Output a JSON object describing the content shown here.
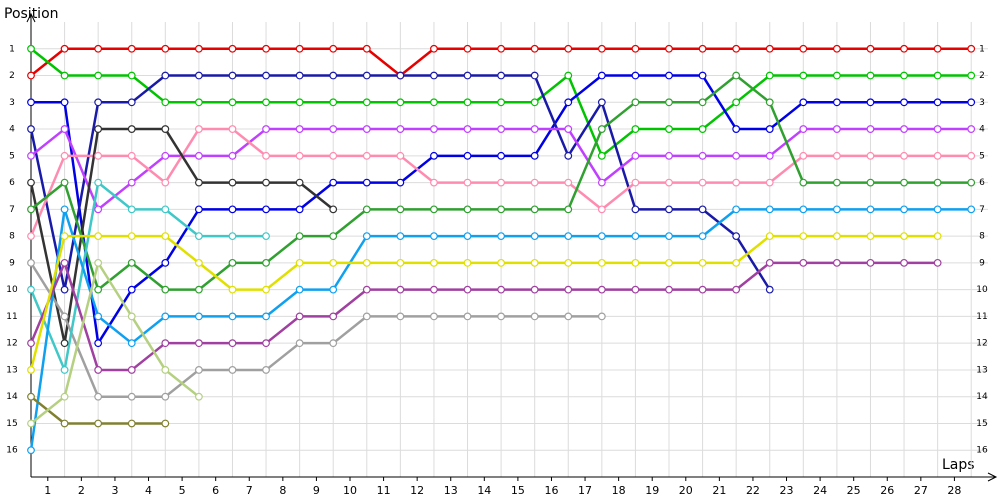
{
  "chart_data": {
    "type": "line",
    "y_label": "Position",
    "x_label": "Laps",
    "x": [
      0,
      1,
      2,
      3,
      4,
      5,
      6,
      7,
      8,
      9,
      10,
      11,
      12,
      13,
      14,
      15,
      16,
      17,
      18,
      19,
      20,
      21,
      22,
      23,
      24,
      25,
      26,
      27,
      28
    ],
    "xlim": [
      0,
      28.5
    ],
    "xticks": [
      {
        "value": 0.5,
        "label": "1"
      },
      {
        "value": 1.5,
        "label": "2"
      },
      {
        "value": 2.5,
        "label": "3"
      },
      {
        "value": 3.5,
        "label": "4"
      },
      {
        "value": 4.5,
        "label": "5"
      },
      {
        "value": 5.5,
        "label": "6"
      },
      {
        "value": 6.5,
        "label": "7"
      },
      {
        "value": 7.5,
        "label": "8"
      },
      {
        "value": 8.5,
        "label": "9"
      },
      {
        "value": 9.5,
        "label": "10"
      },
      {
        "value": 10.5,
        "label": "11"
      },
      {
        "value": 11.5,
        "label": "12"
      },
      {
        "value": 12.5,
        "label": "13"
      },
      {
        "value": 13.5,
        "label": "14"
      },
      {
        "value": 14.5,
        "label": "15"
      },
      {
        "value": 15.5,
        "label": "16"
      },
      {
        "value": 16.5,
        "label": "17"
      },
      {
        "value": 17.5,
        "label": "18"
      },
      {
        "value": 18.5,
        "label": "19"
      },
      {
        "value": 19.5,
        "label": "20"
      },
      {
        "value": 20.5,
        "label": "21"
      },
      {
        "value": 21.5,
        "label": "22"
      },
      {
        "value": 22.5,
        "label": "23"
      },
      {
        "value": 23.5,
        "label": "24"
      },
      {
        "value": 24.5,
        "label": "25"
      },
      {
        "value": 25.5,
        "label": "26"
      },
      {
        "value": 26.5,
        "label": "27"
      },
      {
        "value": 27.5,
        "label": "28"
      }
    ],
    "ylim": [
      17,
      0
    ],
    "yticks": [
      1,
      2,
      3,
      4,
      5,
      6,
      7,
      8,
      9,
      10,
      11,
      12,
      13,
      14,
      15,
      16
    ],
    "grid": true,
    "series": [
      {
        "color": "#e60000",
        "values": [
          2,
          1,
          1,
          1,
          1,
          1,
          1,
          1,
          1,
          1,
          1,
          2,
          1,
          1,
          1,
          1,
          1,
          1,
          1,
          1,
          1,
          1,
          1,
          1,
          1,
          1,
          1,
          1,
          1
        ]
      },
      {
        "color": "#00c400",
        "values": [
          1,
          2,
          2,
          2,
          3,
          3,
          3,
          3,
          3,
          3,
          3,
          3,
          3,
          3,
          3,
          3,
          2,
          5,
          4,
          4,
          4,
          3,
          2,
          2,
          2,
          2,
          2,
          2,
          2
        ]
      },
      {
        "color": "#0000e6",
        "values": [
          3,
          3,
          12,
          10,
          9,
          7,
          7,
          7,
          7,
          6,
          6,
          6,
          5,
          5,
          5,
          5,
          3,
          2,
          2,
          2,
          2,
          4,
          4,
          3,
          3,
          3,
          3,
          3,
          3
        ]
      },
      {
        "color": "#1a1aa8",
        "values": [
          4,
          10,
          3,
          3,
          2,
          2,
          2,
          2,
          2,
          2,
          2,
          2,
          2,
          2,
          2,
          2,
          5,
          3,
          7,
          7,
          7,
          8,
          10,
          null,
          null,
          null,
          null,
          null,
          null
        ]
      },
      {
        "color": "#c040ff",
        "values": [
          5,
          4,
          7,
          6,
          5,
          5,
          5,
          4,
          4,
          4,
          4,
          4,
          4,
          4,
          4,
          4,
          4,
          6,
          5,
          5,
          5,
          5,
          5,
          4,
          4,
          4,
          4,
          4,
          4
        ]
      },
      {
        "color": "#ff8cb0",
        "values": [
          8,
          5,
          5,
          5,
          6,
          4,
          4,
          5,
          5,
          5,
          5,
          5,
          6,
          6,
          6,
          6,
          6,
          7,
          6,
          6,
          6,
          6,
          6,
          5,
          5,
          5,
          5,
          5,
          5
        ]
      },
      {
        "color": "#333333",
        "values": [
          6,
          12,
          4,
          4,
          4,
          6,
          6,
          6,
          6,
          7,
          null,
          null,
          null,
          null,
          null,
          null,
          null,
          null,
          null,
          null,
          null,
          null,
          null,
          null,
          null,
          null,
          null,
          null,
          null
        ]
      },
      {
        "color": "#30a030",
        "values": [
          7,
          6,
          10,
          9,
          10,
          10,
          9,
          9,
          8,
          8,
          7,
          7,
          7,
          7,
          7,
          7,
          7,
          4,
          3,
          3,
          3,
          2,
          3,
          6,
          6,
          6,
          6,
          6,
          6
        ]
      },
      {
        "color": "#a0a0a0",
        "values": [
          9,
          11,
          14,
          14,
          14,
          13,
          13,
          13,
          12,
          12,
          11,
          11,
          11,
          11,
          11,
          11,
          11,
          11,
          null,
          null,
          null,
          null,
          null,
          null,
          null,
          null,
          null,
          null,
          null
        ]
      },
      {
        "color": "#40c8c8",
        "values": [
          10,
          13,
          6,
          7,
          7,
          8,
          8,
          8,
          null,
          null,
          null,
          null,
          null,
          null,
          null,
          null,
          null,
          null,
          null,
          null,
          null,
          null,
          null,
          null,
          null,
          null,
          null,
          null,
          null
        ]
      },
      {
        "color": "#10a0f0",
        "values": [
          16,
          7,
          11,
          12,
          11,
          11,
          11,
          11,
          10,
          10,
          8,
          8,
          8,
          8,
          8,
          8,
          8,
          8,
          8,
          8,
          8,
          7,
          7,
          7,
          7,
          7,
          7,
          7,
          7
        ]
      },
      {
        "color": "#a040a0",
        "values": [
          12,
          9,
          13,
          13,
          12,
          12,
          12,
          12,
          11,
          11,
          10,
          10,
          10,
          10,
          10,
          10,
          10,
          10,
          10,
          10,
          10,
          10,
          9,
          9,
          9,
          9,
          9,
          9,
          null
        ]
      },
      {
        "color": "#e0e000",
        "values": [
          13,
          8,
          8,
          8,
          8,
          9,
          10,
          10,
          9,
          9,
          9,
          9,
          9,
          9,
          9,
          9,
          9,
          9,
          9,
          9,
          9,
          9,
          8,
          8,
          8,
          8,
          8,
          8,
          null
        ]
      },
      {
        "color": "#808030",
        "values": [
          14,
          15,
          15,
          15,
          15,
          null,
          null,
          null,
          null,
          null,
          null,
          null,
          null,
          null,
          null,
          null,
          null,
          null,
          null,
          null,
          null,
          null,
          null,
          null,
          null,
          null,
          null,
          null,
          null
        ]
      },
      {
        "color": "#b4d080",
        "values": [
          15,
          14,
          9,
          11,
          13,
          14,
          null,
          null,
          null,
          null,
          null,
          null,
          null,
          null,
          null,
          null,
          null,
          null,
          null,
          null,
          null,
          null,
          null,
          null,
          null,
          null,
          null,
          null,
          null
        ]
      }
    ]
  }
}
